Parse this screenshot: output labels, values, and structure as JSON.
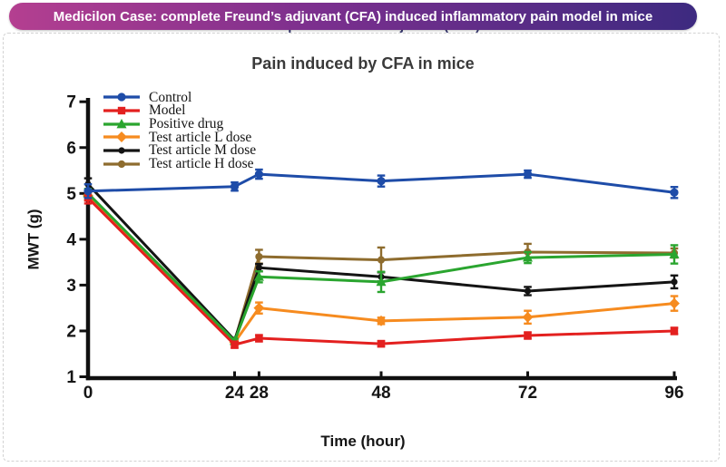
{
  "header": {
    "title": "Medicilon Case: complete Freund’s adjuvant (CFA) induced inflammatory pain model in mice",
    "gradient_left": "#b43f90",
    "gradient_mid": "#7b2f8e",
    "gradient_right": "#3d2a80",
    "text_color": "#ffffff"
  },
  "chart_data": {
    "type": "line",
    "title": "Pain induced by CFA in mice",
    "xlabel": "Time (hour)",
    "ylabel": "MWT (g)",
    "x": [
      0,
      24,
      28,
      48,
      72,
      96
    ],
    "xticks": [
      0,
      24,
      28,
      48,
      72,
      96
    ],
    "yticks": [
      1,
      2,
      3,
      4,
      5,
      6,
      7
    ],
    "xlim": [
      0,
      96
    ],
    "ylim": [
      1,
      7
    ],
    "grid": false,
    "legend_position": "top-left-inside",
    "axis_color": "#101010",
    "error_bars": true,
    "series": [
      {
        "name": "Control",
        "color": "#1e4ca8",
        "marker": "circle",
        "msize": 4.6,
        "values": [
          5.05,
          5.15,
          5.42,
          5.27,
          5.42,
          5.02
        ],
        "errors": [
          0.15,
          0.09,
          0.1,
          0.12,
          0.08,
          0.12
        ]
      },
      {
        "name": "Model",
        "color": "#e3201f",
        "marker": "square",
        "msize": 4.2,
        "values": [
          4.9,
          1.7,
          1.84,
          1.72,
          1.9,
          2.0
        ],
        "errors": [
          0.12,
          0.07,
          0.07,
          0.06,
          0.07,
          0.07
        ]
      },
      {
        "name": "Positive drug",
        "color": "#2aa52f",
        "marker": "triangle",
        "msize": 4.6,
        "values": [
          5.0,
          1.78,
          3.18,
          3.07,
          3.6,
          3.67
        ],
        "errors": [
          0.1,
          0.05,
          0.12,
          0.22,
          0.12,
          0.2
        ]
      },
      {
        "name": "Test article L dose",
        "color": "#f68b1f",
        "marker": "diamond",
        "msize": 4.4,
        "values": [
          4.95,
          1.75,
          2.5,
          2.22,
          2.3,
          2.6
        ],
        "errors": [
          0.1,
          0.05,
          0.12,
          0.07,
          0.14,
          0.16
        ]
      },
      {
        "name": "Test article M dose",
        "color": "#141414",
        "marker": "circle",
        "msize": 3.6,
        "values": [
          5.2,
          1.8,
          3.38,
          3.18,
          2.87,
          3.07
        ],
        "errors": [
          0.13,
          0.05,
          0.08,
          0.1,
          0.09,
          0.14
        ]
      },
      {
        "name": "Test article H dose",
        "color": "#8e6c2e",
        "marker": "circle",
        "msize": 4.1,
        "values": [
          4.95,
          1.77,
          3.62,
          3.55,
          3.72,
          3.7
        ],
        "errors": [
          0.1,
          0.05,
          0.15,
          0.27,
          0.18,
          0.1
        ]
      }
    ]
  }
}
